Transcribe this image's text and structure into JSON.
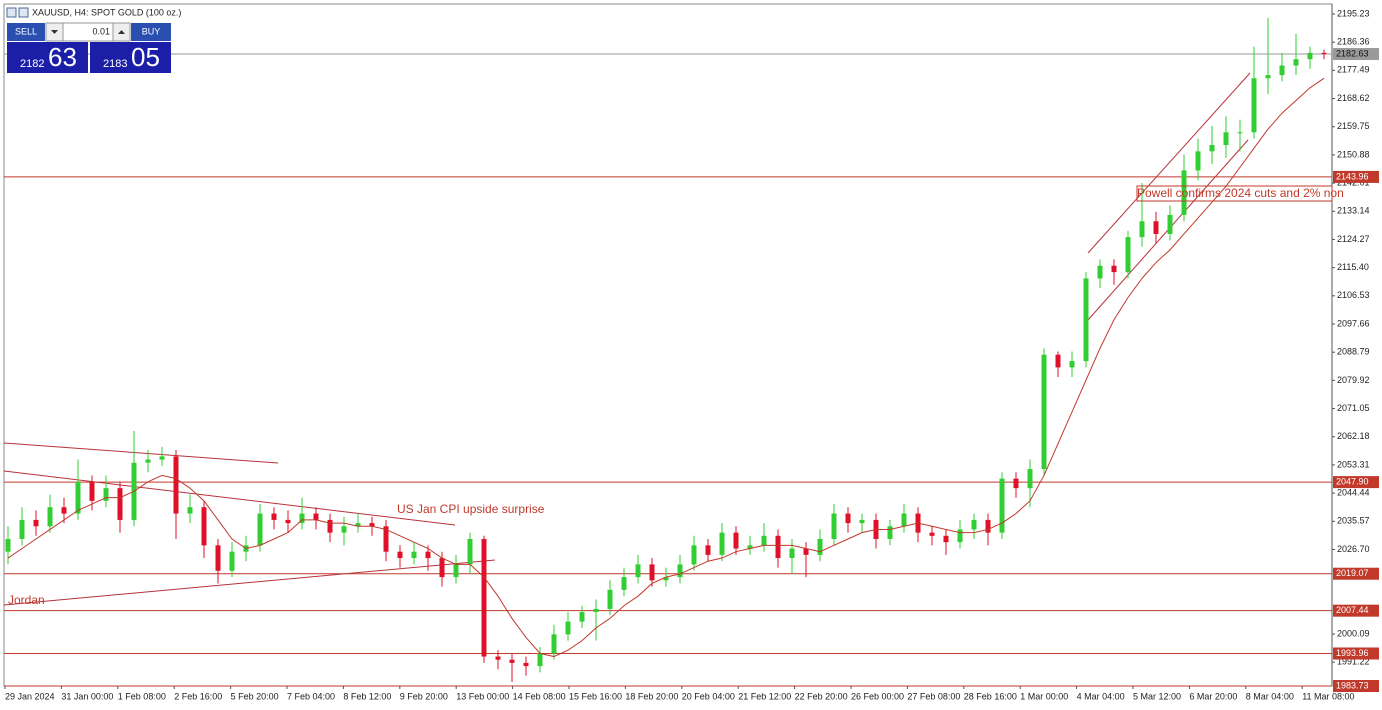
{
  "window_title": "XAUUSD, H4:  SPOT GOLD (100 oz.)",
  "trade_panel": {
    "sell_label": "SELL",
    "lot": "0.01",
    "buy_label": "BUY",
    "bid_main": "2182",
    "bid_big": "63",
    "ask_main": "2183",
    "ask_big": "05"
  },
  "chart_data": {
    "type": "candlestick",
    "first_open": 2026,
    "close": [
      2030,
      2036,
      2034,
      2040,
      2038,
      2048,
      2042,
      2046,
      2036,
      2054,
      2055,
      2056,
      2038,
      2040,
      2028,
      2020,
      2026,
      2028,
      2038,
      2036,
      2035,
      2038,
      2036,
      2032,
      2034,
      2035,
      2034,
      2026,
      2024,
      2026,
      2024,
      2018,
      2022,
      2030,
      1993,
      1992,
      1991,
      1990,
      1994,
      2000,
      2004,
      2007,
      2008,
      2014,
      2018,
      2022,
      2017,
      2018,
      2022,
      2028,
      2025,
      2032,
      2027,
      2028,
      2031,
      2024,
      2027,
      2025,
      2030,
      2038,
      2035,
      2036,
      2030,
      2034,
      2038,
      2032,
      2031,
      2029,
      2033,
      2036,
      2032,
      2049,
      2046,
      2052,
      2088,
      2084,
      2086,
      2112,
      2116,
      2114,
      2125,
      2130,
      2126,
      2132,
      2146,
      2152,
      2154,
      2158,
      2158,
      2175,
      2176,
      2179,
      2181,
      2183,
      2182.63
    ],
    "high": [
      2034,
      2040,
      2039,
      2044,
      2043,
      2055,
      2050,
      2050,
      2048,
      2064,
      2058,
      2059,
      2058,
      2044,
      2042,
      2030,
      2029,
      2031,
      2041,
      2040,
      2039,
      2043,
      2040,
      2038,
      2037,
      2038,
      2037,
      2036,
      2028,
      2029,
      2028,
      2026,
      2025,
      2032,
      2031,
      1995,
      1994,
      1993,
      1996,
      2003,
      2007,
      2009,
      2011,
      2017,
      2021,
      2025,
      2024,
      2021,
      2025,
      2031,
      2030,
      2035,
      2034,
      2031,
      2035,
      2033,
      2030,
      2029,
      2033,
      2041,
      2040,
      2038,
      2038,
      2036,
      2041,
      2040,
      2034,
      2033,
      2036,
      2038,
      2038,
      2051,
      2051,
      2055,
      2090,
      2089,
      2089,
      2114,
      2118,
      2118,
      2127,
      2142,
      2133,
      2135,
      2151,
      2156,
      2160,
      2163,
      2162,
      2185,
      2194,
      2183,
      2189,
      2185,
      2184
    ],
    "low": [
      2022,
      2028,
      2031,
      2032,
      2035,
      2036,
      2039,
      2040,
      2032,
      2034,
      2051,
      2053,
      2030,
      2035,
      2024,
      2016,
      2018,
      2023,
      2026,
      2033,
      2032,
      2033,
      2033,
      2029,
      2028,
      2032,
      2031,
      2023,
      2021,
      2022,
      2020,
      2015,
      2016,
      2019,
      1991,
      1989,
      1985,
      1987,
      1988,
      1992,
      1998,
      2002,
      1998,
      2006,
      2012,
      2016,
      2015,
      2015,
      2016,
      2020,
      2023,
      2023,
      2025,
      2025,
      2026,
      2021,
      2019,
      2018,
      2023,
      2028,
      2032,
      2032,
      2027,
      2028,
      2032,
      2029,
      2028,
      2025,
      2027,
      2030,
      2028,
      2030,
      2043,
      2040,
      2050,
      2081,
      2081,
      2084,
      2109,
      2110,
      2112,
      2122,
      2123,
      2124,
      2130,
      2143,
      2148,
      2150,
      2152,
      2156,
      2170,
      2174,
      2176,
      2178,
      2181
    ],
    "ma": [
      2024,
      2027,
      2030,
      2033,
      2036,
      2039,
      2041,
      2043,
      2043,
      2045,
      2048,
      2050,
      2049,
      2046,
      2042,
      2036,
      2030,
      2027,
      2028,
      2030,
      2032,
      2036,
      2036,
      2035,
      2035,
      2034,
      2034,
      2033,
      2031,
      2029,
      2027,
      2024,
      2022,
      2022,
      2018,
      2012,
      2005,
      1999,
      1994,
      1993,
      1995,
      1998,
      2002,
      2005,
      2009,
      2012,
      2016,
      2018,
      2019,
      2021,
      2023,
      2024,
      2026,
      2027,
      2028,
      2028,
      2028,
      2027,
      2026,
      2028,
      2030,
      2032,
      2033,
      2033,
      2034,
      2035,
      2034,
      2033,
      2032,
      2032,
      2033,
      2035,
      2038,
      2042,
      2050,
      2060,
      2070,
      2080,
      2090,
      2099,
      2106,
      2112,
      2117,
      2121,
      2126,
      2131,
      2136,
      2141,
      2147,
      2153,
      2159,
      2164,
      2168,
      2172,
      2175
    ],
    "ylim": [
      1983.73,
      2195.23
    ],
    "yticks": [
      2195.23,
      2186.36,
      2177.49,
      2168.62,
      2159.75,
      2150.88,
      2142.01,
      2133.14,
      2124.27,
      {
        "value": 2115.4,
        "label": "2115.40"
      },
      2106.53,
      2097.66,
      2088.79,
      2079.92,
      2071.05,
      2062.18,
      2053.31,
      2044.44,
      2035.57,
      {
        "value": 2026.7,
        "label": "2026.70"
      },
      2000.09,
      1991.22
    ],
    "levels": [
      2143.96,
      {
        "value": 2047.9,
        "label": "2047.90"
      },
      2019.07,
      2007.44,
      1993.96,
      1983.73
    ],
    "current_price": 2182.63,
    "x_labels": [
      "29 Jan 2024",
      "31 Jan 00:00",
      "1 Feb 08:00",
      "2 Feb 16:00",
      "5 Feb 20:00",
      "7 Feb 04:00",
      "8 Feb 12:00",
      "9 Feb 20:00",
      "13 Feb 00:00",
      "14 Feb 08:00",
      "15 Feb 16:00",
      "18 Feb 20:00",
      "20 Feb 04:00",
      "21 Feb 12:00",
      "22 Feb 20:00",
      "26 Feb 00:00",
      "27 Feb 08:00",
      "28 Feb 16:00",
      "1 Mar 00:00",
      "4 Mar 04:00",
      "5 Mar 12:00",
      "6 Mar 20:00",
      "8 Mar 04:00",
      "11 Mar 08:00"
    ],
    "annotations": [
      "US Jan CPI upside surprise",
      "Jordan",
      "Powell confirms 2024 cuts and 2% non"
    ],
    "colors": {
      "up": "#32cd32",
      "down": "#e0102a",
      "level": "#c0392b",
      "ma": "#c0392b",
      "current": "#9a9a9a"
    }
  }
}
